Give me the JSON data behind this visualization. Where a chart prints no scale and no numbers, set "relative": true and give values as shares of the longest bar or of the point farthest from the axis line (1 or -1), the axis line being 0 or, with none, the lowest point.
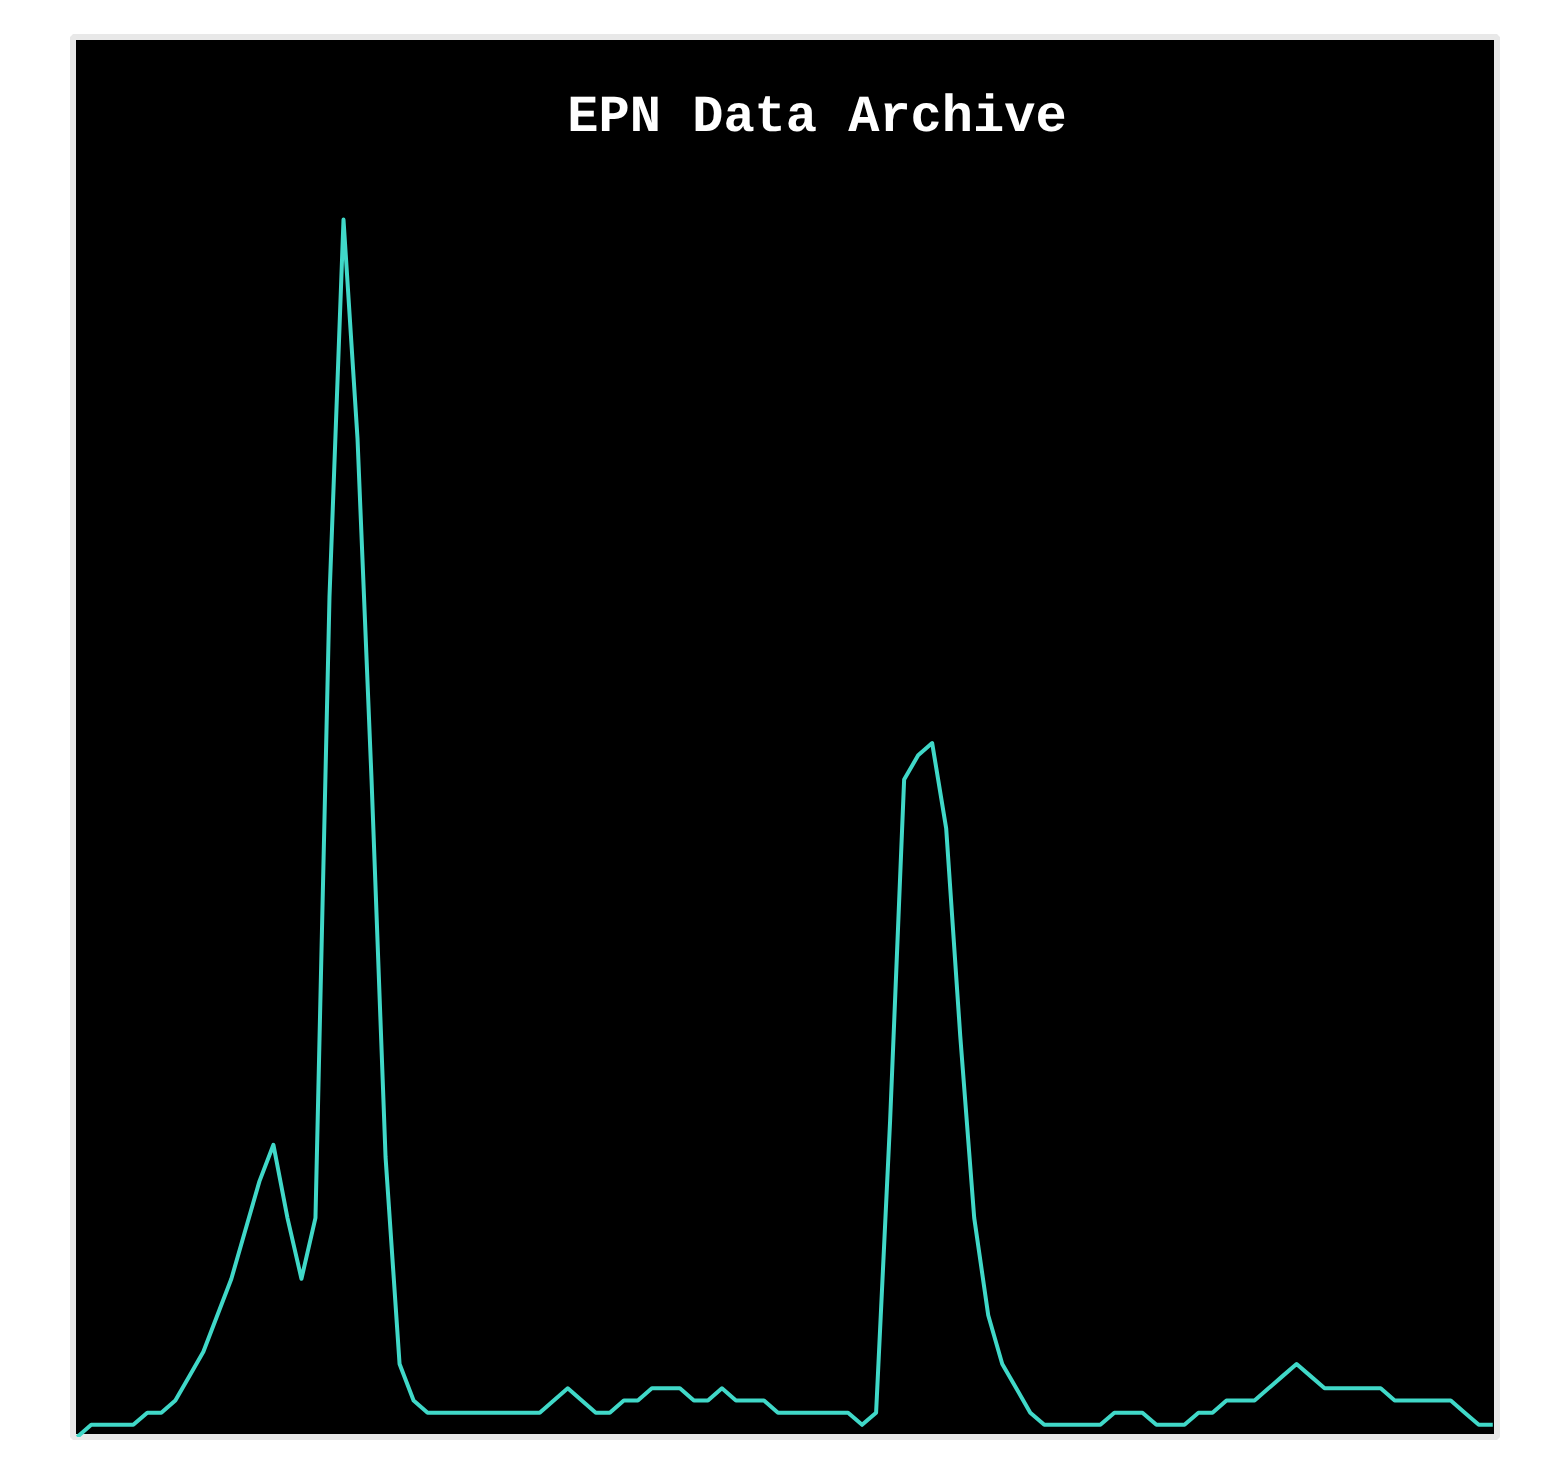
{
  "chart_data": {
    "type": "line",
    "title": "EPN Data Archive",
    "relative": true,
    "tick_labels": false,
    "categories": [
      null,
      null,
      null,
      null,
      null,
      null,
      null,
      null,
      null,
      null,
      null,
      null,
      null,
      null,
      null,
      null,
      null,
      null,
      null,
      null,
      null,
      null,
      null,
      null,
      null,
      null,
      null,
      null,
      null,
      null,
      null,
      null,
      null,
      null,
      null,
      null,
      null,
      null,
      null,
      null,
      null,
      null,
      null,
      null,
      null,
      null,
      null,
      null,
      null,
      null,
      null,
      null,
      null,
      null,
      null,
      null,
      null,
      null,
      null,
      null,
      null,
      null,
      null,
      null,
      null,
      null,
      null,
      null,
      null,
      null,
      null,
      null,
      null,
      null,
      null,
      null,
      null,
      null,
      null,
      null,
      null,
      null,
      null,
      null,
      null,
      null,
      null,
      null,
      null,
      null,
      null,
      null,
      null,
      null,
      null,
      null,
      null,
      null,
      null,
      null,
      null,
      null
    ],
    "series": [
      {
        "color": "#40d8c8",
        "values": [
          0.0,
          0.01,
          0.01,
          0.01,
          0.01,
          0.02,
          0.02,
          0.03,
          0.05,
          0.07,
          0.1,
          0.13,
          0.17,
          0.21,
          0.24,
          0.18,
          0.13,
          0.18,
          0.69,
          1.0,
          0.82,
          0.54,
          0.23,
          0.06,
          0.03,
          0.02,
          0.02,
          0.02,
          0.02,
          0.02,
          0.02,
          0.02,
          0.02,
          0.02,
          0.03,
          0.04,
          0.03,
          0.02,
          0.02,
          0.03,
          0.03,
          0.04,
          0.04,
          0.04,
          0.03,
          0.03,
          0.04,
          0.03,
          0.03,
          0.03,
          0.02,
          0.02,
          0.02,
          0.02,
          0.02,
          0.02,
          0.01,
          0.02,
          0.26,
          0.54,
          0.56,
          0.57,
          0.5,
          0.33,
          0.18,
          0.1,
          0.06,
          0.04,
          0.02,
          0.01,
          0.01,
          0.01,
          0.01,
          0.01,
          0.02,
          0.02,
          0.02,
          0.01,
          0.01,
          0.01,
          0.02,
          0.02,
          0.03,
          0.03,
          0.03,
          0.04,
          0.05,
          0.06,
          0.05,
          0.04,
          0.04,
          0.04,
          0.04,
          0.04,
          0.03,
          0.03,
          0.03,
          0.03,
          0.03,
          0.02,
          0.01,
          0.01
        ]
      }
    ]
  }
}
